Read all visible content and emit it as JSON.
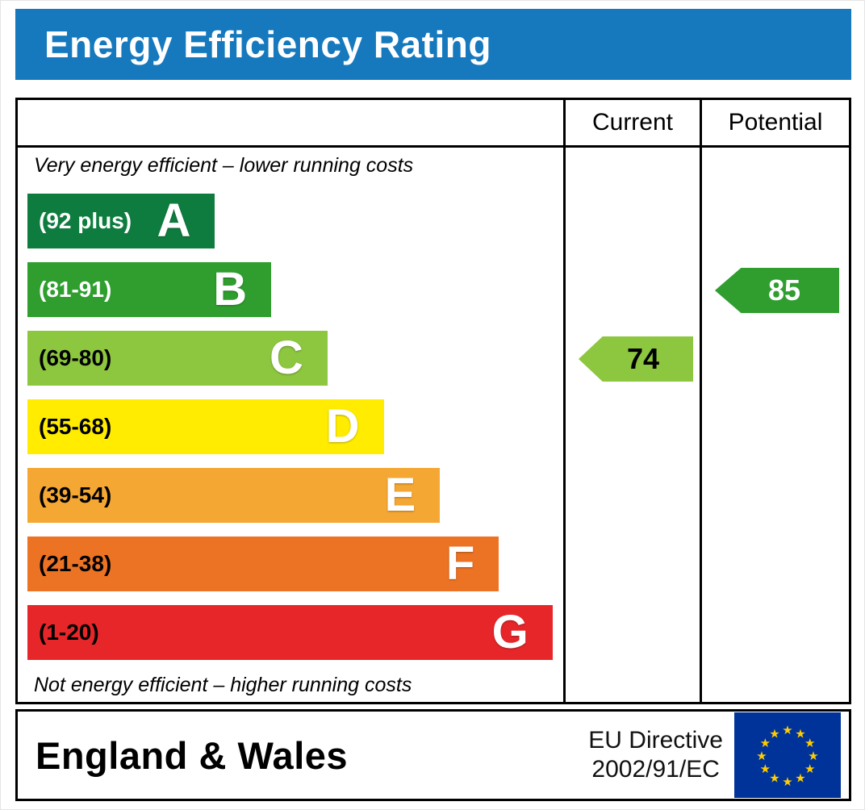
{
  "title": "Energy Efficiency Rating",
  "colors": {
    "title_bar": "#1679bd",
    "frame_border": "#000000"
  },
  "columns": {
    "current": "Current",
    "potential": "Potential"
  },
  "notes": {
    "top": "Very energy efficient – lower running costs",
    "bottom": "Not energy efficient – higher running costs"
  },
  "bands": [
    {
      "letter": "A",
      "range": "(92 plus)",
      "color": "#0f7c3f",
      "range_text_color": "#ffffff",
      "width_pct": 35
    },
    {
      "letter": "B",
      "range": "(81-91)",
      "color": "#2f9e2f",
      "range_text_color": "#ffffff",
      "width_pct": 45.5
    },
    {
      "letter": "C",
      "range": "(69-80)",
      "color": "#8dc63f",
      "range_text_color": "#000000",
      "width_pct": 56
    },
    {
      "letter": "D",
      "range": "(55-68)",
      "color": "#ffec00",
      "range_text_color": "#000000",
      "width_pct": 66.5
    },
    {
      "letter": "E",
      "range": "(39-54)",
      "color": "#f5a733",
      "range_text_color": "#000000",
      "width_pct": 77
    },
    {
      "letter": "F",
      "range": "(21-38)",
      "color": "#ec7324",
      "range_text_color": "#000000",
      "width_pct": 88
    },
    {
      "letter": "G",
      "range": "(1-20)",
      "color": "#e7262a",
      "range_text_color": "#000000",
      "width_pct": 98
    }
  ],
  "ratings": {
    "current": {
      "value": "74",
      "band": "C",
      "band_index": 2,
      "color": "#8dc63f",
      "text_color": "#000000"
    },
    "potential": {
      "value": "85",
      "band": "B",
      "band_index": 1,
      "color": "#2f9e2f",
      "text_color": "#ffffff"
    }
  },
  "footer": {
    "region": "England & Wales",
    "directive": [
      "EU Directive",
      "2002/91/EC"
    ],
    "eu_flag": {
      "background": "#003399",
      "star_color": "#ffcc00"
    }
  },
  "chart_data": {
    "type": "bar",
    "title": "Energy Efficiency Rating",
    "categories": [
      "A",
      "B",
      "C",
      "D",
      "E",
      "F",
      "G"
    ],
    "band_ranges": [
      "92 plus",
      "81-91",
      "69-80",
      "55-68",
      "39-54",
      "21-38",
      "1-20"
    ],
    "band_colors": [
      "#0f7c3f",
      "#2f9e2f",
      "#8dc63f",
      "#ffec00",
      "#f5a733",
      "#ec7324",
      "#e7262a"
    ],
    "series": [
      {
        "name": "Current",
        "value": 74,
        "band": "C"
      },
      {
        "name": "Potential",
        "value": 85,
        "band": "B"
      }
    ],
    "scale_min": 1,
    "scale_max": 100,
    "annotations": [
      "Very energy efficient – lower running costs",
      "Not energy efficient – higher running costs"
    ],
    "region": "England & Wales",
    "directive": "EU Directive 2002/91/EC",
    "legend_position": "columns-right",
    "grid": false
  }
}
